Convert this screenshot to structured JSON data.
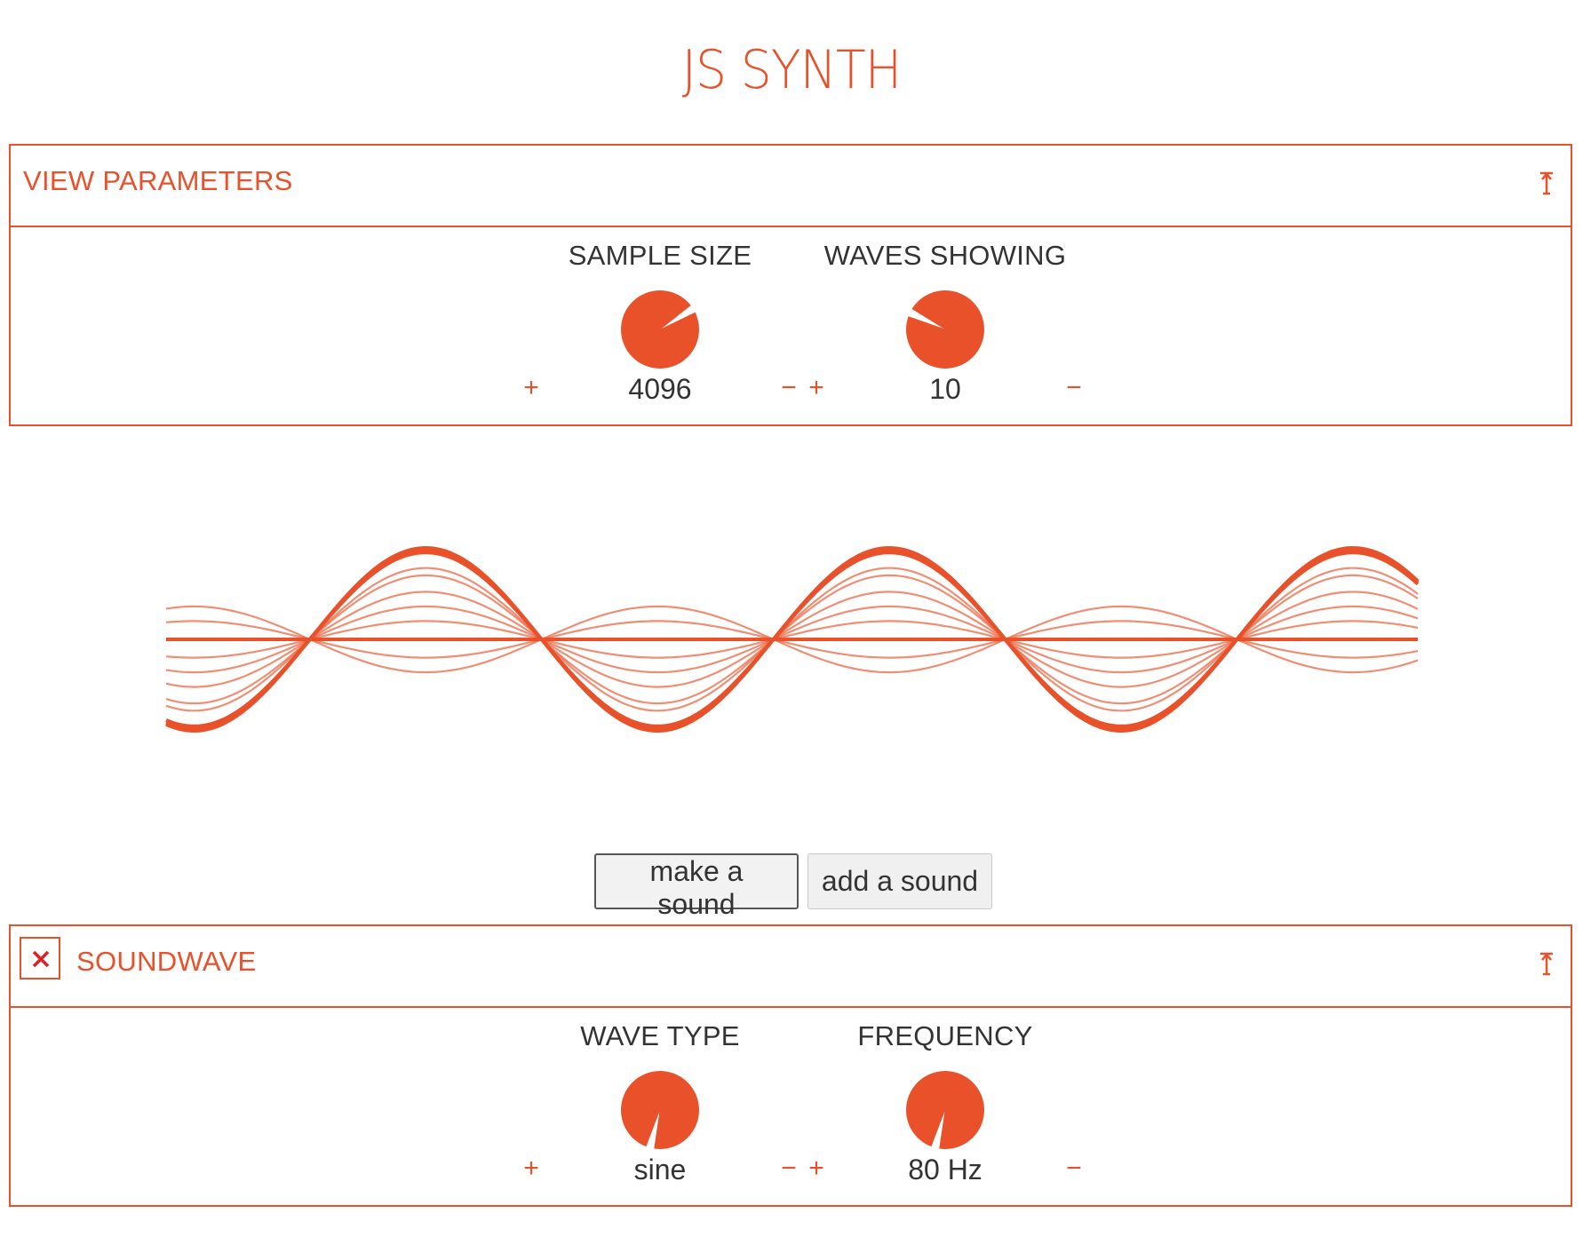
{
  "app": {
    "title": "JS SYNTH"
  },
  "colors": {
    "accent": "#e8512a",
    "text": "#333333",
    "button_bg": "#f0f0f0"
  },
  "view_parameters": {
    "title": "VIEW PARAMETERS",
    "collapse_icon": "collapse-arrow-icon",
    "controls": [
      {
        "label": "SAMPLE SIZE",
        "value": "4096",
        "plus": "+",
        "minus": "−",
        "knob_level": 0.17
      },
      {
        "label": "WAVES SHOWING",
        "value": "10",
        "plus": "+",
        "minus": "−",
        "knob_level": 0.83
      }
    ]
  },
  "waveform": {
    "waves_showing": 10,
    "cycles": 2.7
  },
  "buttons": {
    "make_sound": "make a sound",
    "add_sound": "add a sound"
  },
  "soundwave": {
    "title": "SOUNDWAVE",
    "close_icon": "close-x-icon",
    "collapse_icon": "collapse-arrow-icon",
    "controls": [
      {
        "label": "WAVE TYPE",
        "value": "sine",
        "plus": "+",
        "minus": "−",
        "knob_level": 0.55
      },
      {
        "label": "FREQUENCY",
        "value": "80 Hz",
        "plus": "+",
        "minus": "−",
        "knob_level": 0.55
      }
    ]
  }
}
